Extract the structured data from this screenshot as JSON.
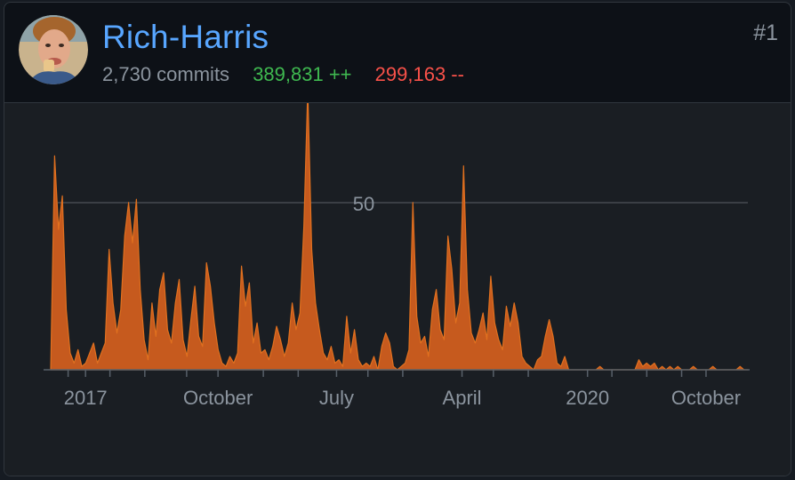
{
  "contributor": {
    "username": "Rich-Harris",
    "rank": "#1",
    "commits": "2,730 commits",
    "additions": "389,831 ++",
    "deletions": "299,163 --"
  },
  "colors": {
    "link": "#58a6ff",
    "additions": "#3fb950",
    "deletions": "#f85149",
    "area_fill": "#c65a1e",
    "area_stroke": "#e0701f"
  },
  "chart_data": {
    "type": "area",
    "ylim": [
      0,
      67
    ],
    "grid_lines": [
      50
    ],
    "y_tick_labels": [
      "50"
    ],
    "x_tick_labels": [
      "2017",
      "October",
      "July",
      "April",
      "2020",
      "October"
    ],
    "x_tick_positions": [
      0.05,
      0.24,
      0.41,
      0.59,
      0.77,
      0.94
    ],
    "minor_tick_positions": [
      0.025,
      0.085,
      0.135,
      0.195,
      0.305,
      0.355,
      0.455,
      0.505,
      0.635,
      0.685,
      0.805,
      0.855,
      0.905
    ],
    "series": [
      {
        "values": [
          0,
          64,
          42,
          52,
          18,
          5,
          2,
          6,
          1,
          2,
          5,
          8,
          2,
          5,
          8,
          36,
          20,
          11,
          18,
          40,
          50,
          38,
          51,
          24,
          9,
          3,
          20,
          10,
          24,
          29,
          12,
          8,
          20,
          27,
          9,
          4,
          15,
          25,
          10,
          7,
          32,
          25,
          14,
          6,
          2,
          1,
          4,
          2,
          5,
          31,
          19,
          26,
          8,
          14,
          5,
          6,
          3,
          7,
          13,
          9,
          4,
          8,
          20,
          12,
          17,
          43,
          84,
          36,
          20,
          12,
          5,
          3,
          7,
          2,
          3,
          1,
          16,
          5,
          12,
          3,
          1,
          2,
          1,
          4,
          0,
          7,
          11,
          8,
          1,
          0,
          1,
          2,
          6,
          50,
          16,
          8,
          10,
          4,
          18,
          24,
          12,
          9,
          40,
          30,
          14,
          20,
          61,
          24,
          11,
          8,
          12,
          17,
          9,
          28,
          14,
          9,
          6,
          19,
          13,
          20,
          14,
          4,
          2,
          1,
          0,
          3,
          4,
          10,
          15,
          10,
          2,
          1,
          4,
          0,
          0,
          0,
          0,
          0,
          0,
          0,
          0,
          1,
          0,
          0,
          0,
          0,
          0,
          0,
          0,
          0,
          0,
          3,
          1,
          2,
          1,
          2,
          0,
          1,
          0,
          1,
          0,
          1,
          0,
          0,
          0,
          1,
          0,
          0,
          0,
          0,
          1,
          0,
          0,
          0,
          0,
          0,
          0,
          1,
          0,
          0
        ]
      }
    ]
  }
}
